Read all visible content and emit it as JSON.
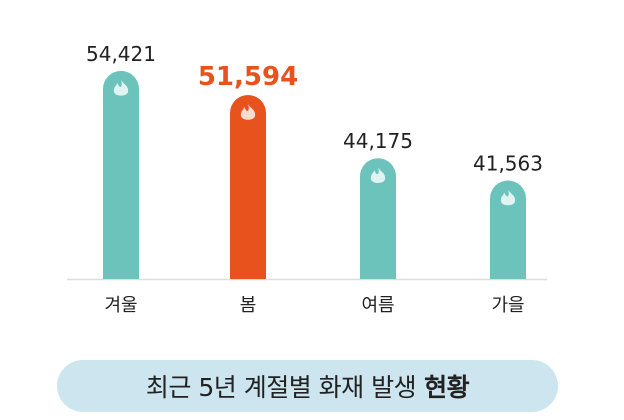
{
  "chart_data": {
    "type": "bar",
    "title": "최근 5년 계절별 화재 발생",
    "title_bold": "현황",
    "categories": [
      "겨울",
      "봄",
      "여름",
      "가을"
    ],
    "values": [
      54421,
      51594,
      44175,
      41563
    ],
    "value_labels": [
      "54,421",
      "51,594",
      "44,175",
      "41,563"
    ],
    "highlight_index": 1,
    "ylim": [
      30000,
      55000
    ],
    "grid": false,
    "bar_icon": "flame-icon",
    "colors": {
      "bar": "#6cc3bb",
      "highlight": "#e8531d",
      "label": "#222222",
      "title_bg": "#cde5ee",
      "baseline": "#dddddd"
    }
  }
}
